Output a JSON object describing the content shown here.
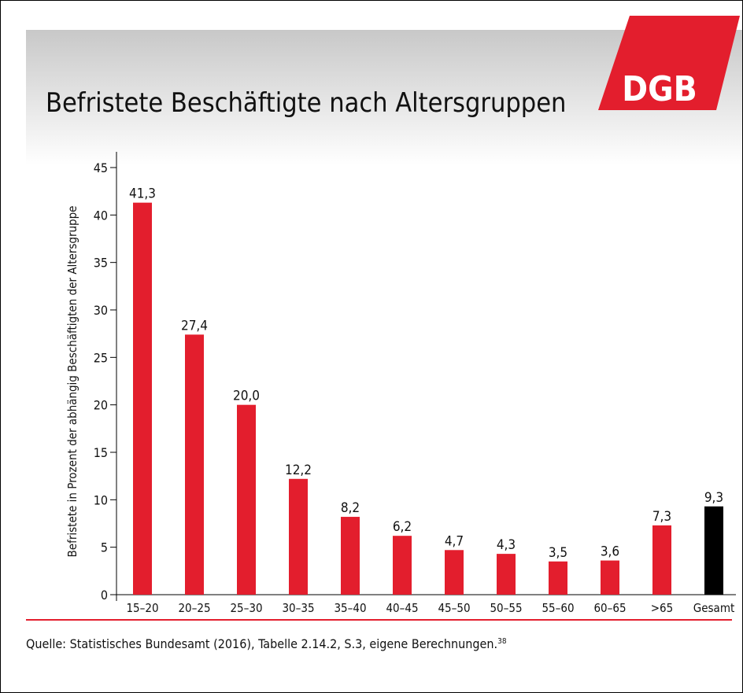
{
  "logo": "DGB",
  "chart_data": {
    "type": "bar",
    "title": "Befristete Beschäftigte nach Altersgruppen",
    "y_label": "Befristete in Prozent der abhängig Beschäftigten der Altersgruppe",
    "categories": [
      "15–20",
      "20–25",
      "25–30",
      "30–35",
      "35–40",
      "40–45",
      "45–50",
      "50–55",
      "55–60",
      "60–65",
      ">65",
      "Gesamt"
    ],
    "values": [
      41.3,
      27.4,
      20.0,
      12.2,
      8.2,
      6.2,
      4.7,
      4.3,
      3.5,
      3.6,
      7.3,
      9.3
    ],
    "value_labels": [
      "41,3",
      "27,4",
      "20,0",
      "12,2",
      "8,2",
      "6,2",
      "4,7",
      "4,3",
      "3,5",
      "3,6",
      "7,3",
      "9,3"
    ],
    "colors": [
      "#e31e2d",
      "#e31e2d",
      "#e31e2d",
      "#e31e2d",
      "#e31e2d",
      "#e31e2d",
      "#e31e2d",
      "#e31e2d",
      "#e31e2d",
      "#e31e2d",
      "#e31e2d",
      "#000000"
    ],
    "ylim": [
      0,
      45
    ],
    "yticks": [
      0,
      5,
      10,
      15,
      20,
      25,
      30,
      35,
      40,
      45
    ],
    "grid": false,
    "source": "Quelle: Statistisches Bundesamt (2016), Tabelle 2.14.2, S.3, eigene Berechnungen.",
    "source_footnote": "38"
  }
}
